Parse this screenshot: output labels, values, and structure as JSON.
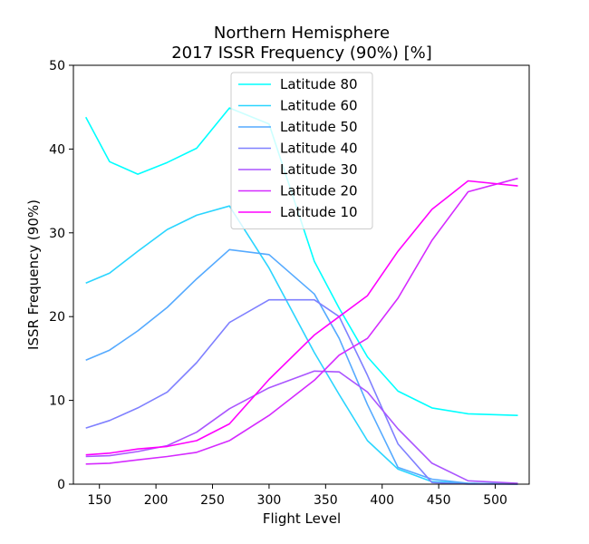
{
  "chart_data": {
    "type": "line",
    "title_line1": "Northern Hemisphere",
    "title_line2": "2017 ISSR Frequency (90%) [%]",
    "xlabel": "Flight Level",
    "ylabel": "ISSR Frequency (90%)",
    "xlim": [
      127,
      530
    ],
    "ylim": [
      0,
      50
    ],
    "xticks": [
      150,
      200,
      250,
      300,
      350,
      400,
      450,
      500
    ],
    "yticks": [
      0,
      10,
      20,
      30,
      40,
      50
    ],
    "grid": false,
    "legend_position": "top-center",
    "x": [
      138,
      159,
      184,
      210,
      236,
      265,
      300,
      340,
      362,
      387,
      414,
      444,
      476,
      520
    ],
    "series": [
      {
        "name": "Latitude 80",
        "color": "#00ffff",
        "values": [
          43.8,
          38.5,
          37.0,
          38.4,
          40.1,
          44.9,
          43.0,
          26.6,
          21.0,
          15.2,
          11.1,
          9.1,
          8.4,
          8.2
        ]
      },
      {
        "name": "Latitude 60",
        "color": "#2ad5ff",
        "values": [
          24.0,
          25.2,
          27.8,
          30.4,
          32.1,
          33.2,
          25.8,
          15.7,
          10.7,
          5.2,
          1.8,
          0.3,
          0.1,
          0.0
        ]
      },
      {
        "name": "Latitude 50",
        "color": "#55aaff",
        "values": [
          14.8,
          16.0,
          18.3,
          21.1,
          24.5,
          28.0,
          27.4,
          22.7,
          17.4,
          9.5,
          2.0,
          0.6,
          0.1,
          0.0
        ]
      },
      {
        "name": "Latitude 40",
        "color": "#7f80ff",
        "values": [
          6.7,
          7.6,
          9.1,
          11.0,
          14.5,
          19.3,
          22.0,
          22.0,
          20.0,
          13.0,
          4.8,
          0.2,
          0.0,
          0.0
        ]
      },
      {
        "name": "Latitude 30",
        "color": "#aa55ff",
        "values": [
          3.3,
          3.4,
          3.9,
          4.6,
          6.2,
          9.0,
          11.5,
          13.5,
          13.4,
          11.0,
          6.6,
          2.5,
          0.4,
          0.1
        ]
      },
      {
        "name": "Latitude 20",
        "color": "#d52aff",
        "values": [
          2.4,
          2.5,
          2.9,
          3.3,
          3.8,
          5.2,
          8.2,
          12.4,
          15.4,
          17.4,
          22.2,
          29.1,
          34.9,
          36.5
        ]
      },
      {
        "name": "Latitude 10",
        "color": "#ff00ff",
        "values": [
          3.5,
          3.7,
          4.2,
          4.5,
          5.2,
          7.2,
          12.5,
          17.8,
          20.0,
          22.5,
          27.8,
          32.8,
          36.2,
          35.6
        ]
      }
    ]
  }
}
